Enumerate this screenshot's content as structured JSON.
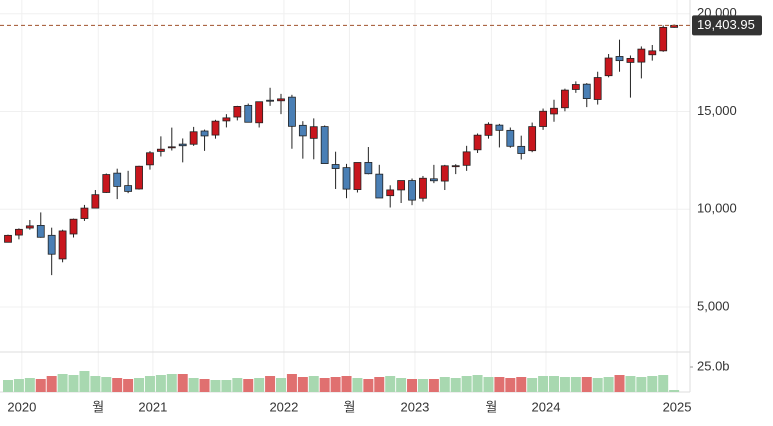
{
  "chart_data": {
    "type": "candlestick",
    "categories": [
      null,
      null,
      "2020",
      null,
      null,
      null,
      null,
      null,
      null,
      "월",
      null,
      null,
      null,
      null,
      "2021",
      null,
      null,
      null,
      null,
      null,
      null,
      null,
      null,
      null,
      null,
      null,
      "2022",
      null,
      null,
      null,
      null,
      null,
      "월",
      null,
      null,
      null,
      null,
      null,
      "2023",
      null,
      null,
      null,
      null,
      null,
      null,
      "월",
      null,
      null,
      null,
      null,
      "2024",
      null,
      null,
      null,
      null,
      null,
      null,
      null,
      null,
      null,
      null,
      null,
      "2025"
    ],
    "open": [
      8310,
      8680,
      9039,
      9174,
      8667,
      7460,
      8735,
      9525,
      10058,
      10858,
      11846,
      11209,
      11036,
      12271,
      12958,
      13152,
      13331,
      13324,
      14001,
      13793,
      14517,
      14716,
      15312,
      14422,
      15575,
      15546,
      15732,
      14292,
      13625,
      14226,
      12288,
      12128,
      11006,
      12394,
      11795,
      10694,
      10988,
      11467,
      10562,
      11557,
      11441,
      12181,
      12246,
      13040,
      13779,
      14302,
      14034,
      13216,
      12994,
      14230,
      14873,
      15190,
      16124,
      16396,
      15612,
      16829,
      17812,
      17507,
      17524,
      17900,
      18100,
      19300,
      null
    ],
    "high": [
      8705,
      9022,
      9451,
      9838,
      9058,
      8955,
      9523,
      10222,
      10985,
      11829,
      12074,
      11965,
      12225,
      12973,
      13728,
      14175,
      13620,
      14211,
      14073,
      14573,
      14863,
      15288,
      15404,
      15385,
      16212,
      15901,
      15852,
      14503,
      14646,
      14285,
      12943,
      12320,
      12390,
      13182,
      12271,
      11224,
      11468,
      11571,
      11702,
      12270,
      12270,
      12304,
      13243,
      13875,
      14446,
      14365,
      14179,
      13763,
      14432,
      15150,
      15598,
      16167,
      16538,
      16451,
      17032,
      17937,
      18671,
      17863,
      18326,
      18400,
      19400,
      19450,
      null
    ],
    "low": [
      8300,
      8462,
      8955,
      8543,
      6631,
      7287,
      8555,
      9403,
      10041,
      10833,
      10519,
      10822,
      11003,
      12026,
      12697,
      13003,
      12397,
      13240,
      12985,
      13609,
      14185,
      14542,
      14447,
      14181,
      15287,
      14861,
      13094,
      12587,
      12555,
      12480,
      11036,
      10565,
      10857,
      11786,
      10633,
      10089,
      10320,
      10208,
      10393,
      11335,
      10983,
      11797,
      11963,
      12877,
      13610,
      13161,
      13146,
      12544,
      12917,
      14058,
      14477,
      15009,
      15952,
      15223,
      15354,
      16746,
      17032,
      15708,
      16690,
      17600,
      18050,
      19280,
      null
    ],
    "close": [
      8665,
      8973,
      9151,
      8567,
      7700,
      8890,
      9490,
      10059,
      10745,
      11775,
      11168,
      10912,
      12199,
      12888,
      13071,
      13192,
      13247,
      13962,
      13749,
      14504,
      14673,
      15259,
      14448,
      15498,
      15538,
      15645,
      14240,
      13751,
      14221,
      12335,
      12081,
      11029,
      12391,
      11816,
      10576,
      10988,
      11468,
      10466,
      11585,
      11456,
      12222,
      12227,
      12935,
      13788,
      14346,
      14035,
      13219,
      12851,
      14226,
      15011,
      15164,
      16092,
      16379,
      15658,
      16735,
      17733,
      17599,
      17714,
      18189,
      18100,
      19300,
      19403.95,
      null
    ],
    "volume": [
      12,
      13,
      14,
      13,
      16,
      18,
      17,
      21,
      16,
      15,
      14,
      13,
      14,
      16,
      17,
      18,
      18,
      14,
      13,
      12,
      12,
      14,
      13,
      14,
      16,
      14,
      18,
      15,
      16,
      14,
      15,
      16,
      14,
      13,
      15,
      16,
      14,
      13,
      13,
      13,
      15,
      14,
      16,
      17,
      15,
      15,
      14,
      15,
      14,
      16,
      16,
      15,
      15,
      15,
      14,
      15,
      17,
      16,
      15,
      16,
      17,
      2,
      null
    ],
    "up_color": "#c8161d",
    "down_color": "#4a7fb5",
    "volume_up_color": "#a8d8b0",
    "volume_down_color": "#e07070",
    "ylim": [
      2700,
      20700
    ],
    "yticks": [
      {
        "value": 5000,
        "label": "5,000"
      },
      {
        "value": 10000,
        "label": "10,000"
      },
      {
        "value": 15000,
        "label": "15,000"
      },
      {
        "value": 20000,
        "label": "20,000"
      }
    ],
    "volume_ylim": [
      0,
      40
    ],
    "volume_ticks": [
      {
        "value": 25,
        "label": "25.0b"
      }
    ],
    "last_value_label": "19,403.95",
    "grid": true
  }
}
